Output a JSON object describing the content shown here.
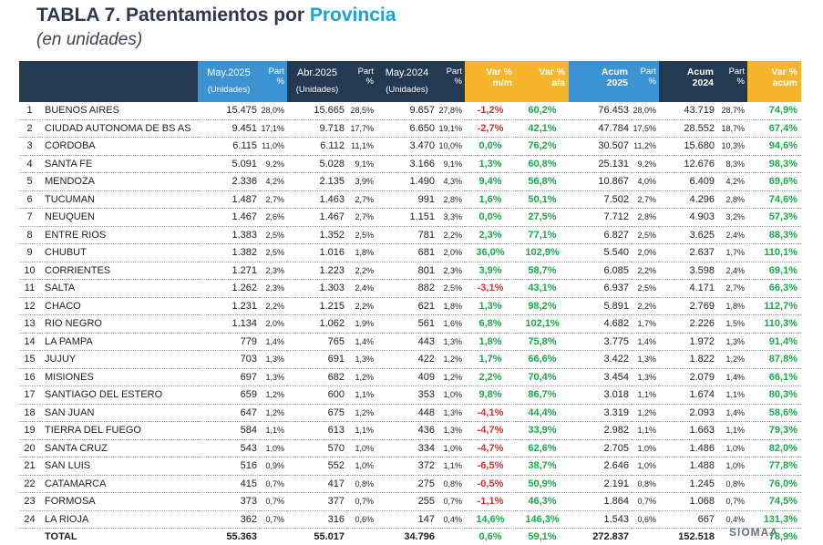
{
  "title_prefix": "TABLA 7. Patentamientos por ",
  "title_highlight": "Provincia",
  "subtitle": "(en unidades)",
  "headers": {
    "may2025": "May.2025",
    "may2025_unit": "(Unidades)",
    "abr2025": "Abr.2025",
    "abr2025_unit": "(Unidades)",
    "may2024": "May.2024",
    "may2024_unit": "(Unidades)",
    "part_a": "Part",
    "part_b": "%",
    "var_mm_a": "Var %",
    "var_mm_b": "m/m",
    "var_aa_a": "Var %",
    "var_aa_b": "a/a",
    "acum25_a": "Acum",
    "acum25_b": "2025",
    "acum24_a": "Acum",
    "acum24_b": "2024",
    "var_acum_a": "Var %",
    "var_acum_b": "acum"
  },
  "rows": [
    {
      "n": "1",
      "name": "BUENOS AIRES",
      "may25": "15.475",
      "p1": "28,0%",
      "abr25": "15.665",
      "p2": "28,5%",
      "may24": "9.657",
      "p3": "27,8%",
      "mm": "-1,2%",
      "aa": "60,2%",
      "ac25": "76.453",
      "p4": "28,0%",
      "ac24": "43.719",
      "p5": "28,7%",
      "vac": "74,9%"
    },
    {
      "n": "2",
      "name": "CIUDAD AUTONOMA DE BS AS",
      "may25": "9.451",
      "p1": "17,1%",
      "abr25": "9.718",
      "p2": "17,7%",
      "may24": "6.650",
      "p3": "19,1%",
      "mm": "-2,7%",
      "aa": "42,1%",
      "ac25": "47.784",
      "p4": "17,5%",
      "ac24": "28.552",
      "p5": "18,7%",
      "vac": "67,4%"
    },
    {
      "n": "3",
      "name": "CORDOBA",
      "may25": "6.115",
      "p1": "11,0%",
      "abr25": "6.112",
      "p2": "11,1%",
      "may24": "3.470",
      "p3": "10,0%",
      "mm": "0,0%",
      "aa": "76,2%",
      "ac25": "30.507",
      "p4": "11,2%",
      "ac24": "15.680",
      "p5": "10,3%",
      "vac": "94,6%"
    },
    {
      "n": "4",
      "name": "SANTA FE",
      "may25": "5.091",
      "p1": "9,2%",
      "abr25": "5.028",
      "p2": "9,1%",
      "may24": "3.166",
      "p3": "9,1%",
      "mm": "1,3%",
      "aa": "60,8%",
      "ac25": "25.131",
      "p4": "9,2%",
      "ac24": "12.676",
      "p5": "8,3%",
      "vac": "98,3%"
    },
    {
      "n": "5",
      "name": "MENDOZA",
      "may25": "2.336",
      "p1": "4,2%",
      "abr25": "2.135",
      "p2": "3,9%",
      "may24": "1.490",
      "p3": "4,3%",
      "mm": "9,4%",
      "aa": "56,8%",
      "ac25": "10.867",
      "p4": "4,0%",
      "ac24": "6.409",
      "p5": "4,2%",
      "vac": "69,6%"
    },
    {
      "n": "6",
      "name": "TUCUMAN",
      "may25": "1.487",
      "p1": "2,7%",
      "abr25": "1.463",
      "p2": "2,7%",
      "may24": "991",
      "p3": "2,8%",
      "mm": "1,6%",
      "aa": "50,1%",
      "ac25": "7.502",
      "p4": "2,7%",
      "ac24": "4.296",
      "p5": "2,8%",
      "vac": "74,6%"
    },
    {
      "n": "7",
      "name": "NEUQUEN",
      "may25": "1.467",
      "p1": "2,6%",
      "abr25": "1.467",
      "p2": "2,7%",
      "may24": "1.151",
      "p3": "3,3%",
      "mm": "0,0%",
      "aa": "27,5%",
      "ac25": "7.712",
      "p4": "2,8%",
      "ac24": "4.903",
      "p5": "3,2%",
      "vac": "57,3%"
    },
    {
      "n": "8",
      "name": "ENTRE RIOS",
      "may25": "1.383",
      "p1": "2,5%",
      "abr25": "1.352",
      "p2": "2,5%",
      "may24": "781",
      "p3": "2,2%",
      "mm": "2,3%",
      "aa": "77,1%",
      "ac25": "6.827",
      "p4": "2,5%",
      "ac24": "3.625",
      "p5": "2,4%",
      "vac": "88,3%"
    },
    {
      "n": "9",
      "name": "CHUBUT",
      "may25": "1.382",
      "p1": "2,5%",
      "abr25": "1.016",
      "p2": "1,8%",
      "may24": "681",
      "p3": "2,0%",
      "mm": "36,0%",
      "aa": "102,9%",
      "ac25": "5.540",
      "p4": "2,0%",
      "ac24": "2.637",
      "p5": "1,7%",
      "vac": "110,1%"
    },
    {
      "n": "10",
      "name": "CORRIENTES",
      "may25": "1.271",
      "p1": "2,3%",
      "abr25": "1.223",
      "p2": "2,2%",
      "may24": "801",
      "p3": "2,3%",
      "mm": "3,9%",
      "aa": "58,7%",
      "ac25": "6.085",
      "p4": "2,2%",
      "ac24": "3.598",
      "p5": "2,4%",
      "vac": "69,1%"
    },
    {
      "n": "11",
      "name": "SALTA",
      "may25": "1.262",
      "p1": "2,3%",
      "abr25": "1.303",
      "p2": "2,4%",
      "may24": "882",
      "p3": "2,5%",
      "mm": "-3,1%",
      "aa": "43,1%",
      "ac25": "6.937",
      "p4": "2,5%",
      "ac24": "4.171",
      "p5": "2,7%",
      "vac": "66,3%"
    },
    {
      "n": "12",
      "name": "CHACO",
      "may25": "1.231",
      "p1": "2,2%",
      "abr25": "1.215",
      "p2": "2,2%",
      "may24": "621",
      "p3": "1,8%",
      "mm": "1,3%",
      "aa": "98,2%",
      "ac25": "5.891",
      "p4": "2,2%",
      "ac24": "2.769",
      "p5": "1,8%",
      "vac": "112,7%"
    },
    {
      "n": "13",
      "name": "RIO NEGRO",
      "may25": "1.134",
      "p1": "2,0%",
      "abr25": "1.062",
      "p2": "1,9%",
      "may24": "561",
      "p3": "1,6%",
      "mm": "6,8%",
      "aa": "102,1%",
      "ac25": "4.682",
      "p4": "1,7%",
      "ac24": "2.226",
      "p5": "1,5%",
      "vac": "110,3%"
    },
    {
      "n": "14",
      "name": "LA PAMPA",
      "may25": "779",
      "p1": "1,4%",
      "abr25": "765",
      "p2": "1,4%",
      "may24": "443",
      "p3": "1,3%",
      "mm": "1,8%",
      "aa": "75,8%",
      "ac25": "3.775",
      "p4": "1,4%",
      "ac24": "1.972",
      "p5": "1,3%",
      "vac": "91,4%"
    },
    {
      "n": "15",
      "name": "JUJUY",
      "may25": "703",
      "p1": "1,3%",
      "abr25": "691",
      "p2": "1,3%",
      "may24": "422",
      "p3": "1,2%",
      "mm": "1,7%",
      "aa": "66,6%",
      "ac25": "3.422",
      "p4": "1,3%",
      "ac24": "1.822",
      "p5": "1,2%",
      "vac": "87,8%"
    },
    {
      "n": "16",
      "name": "MISIONES",
      "may25": "697",
      "p1": "1,3%",
      "abr25": "682",
      "p2": "1,2%",
      "may24": "409",
      "p3": "1,2%",
      "mm": "2,2%",
      "aa": "70,4%",
      "ac25": "3.454",
      "p4": "1,3%",
      "ac24": "2.079",
      "p5": "1,4%",
      "vac": "66,1%"
    },
    {
      "n": "17",
      "name": "SANTIAGO DEL ESTERO",
      "may25": "659",
      "p1": "1,2%",
      "abr25": "600",
      "p2": "1,1%",
      "may24": "353",
      "p3": "1,0%",
      "mm": "9,8%",
      "aa": "86,7%",
      "ac25": "3.018",
      "p4": "1,1%",
      "ac24": "1.674",
      "p5": "1,1%",
      "vac": "80,3%"
    },
    {
      "n": "18",
      "name": "SAN JUAN",
      "may25": "647",
      "p1": "1,2%",
      "abr25": "675",
      "p2": "1,2%",
      "may24": "448",
      "p3": "1,3%",
      "mm": "-4,1%",
      "aa": "44,4%",
      "ac25": "3.319",
      "p4": "1,2%",
      "ac24": "2.093",
      "p5": "1,4%",
      "vac": "58,6%"
    },
    {
      "n": "19",
      "name": "TIERRA DEL FUEGO",
      "may25": "584",
      "p1": "1,1%",
      "abr25": "613",
      "p2": "1,1%",
      "may24": "436",
      "p3": "1,3%",
      "mm": "-4,7%",
      "aa": "33,9%",
      "ac25": "2.982",
      "p4": "1,1%",
      "ac24": "1.663",
      "p5": "1,1%",
      "vac": "79,3%"
    },
    {
      "n": "20",
      "name": "SANTA CRUZ",
      "may25": "543",
      "p1": "1,0%",
      "abr25": "570",
      "p2": "1,0%",
      "may24": "334",
      "p3": "1,0%",
      "mm": "-4,7%",
      "aa": "62,6%",
      "ac25": "2.705",
      "p4": "1,0%",
      "ac24": "1.486",
      "p5": "1,0%",
      "vac": "82,0%"
    },
    {
      "n": "21",
      "name": "SAN LUIS",
      "may25": "516",
      "p1": "0,9%",
      "abr25": "552",
      "p2": "1,0%",
      "may24": "372",
      "p3": "1,1%",
      "mm": "-6,5%",
      "aa": "38,7%",
      "ac25": "2.646",
      "p4": "1,0%",
      "ac24": "1.488",
      "p5": "1,0%",
      "vac": "77,8%"
    },
    {
      "n": "22",
      "name": "CATAMARCA",
      "may25": "415",
      "p1": "0,7%",
      "abr25": "417",
      "p2": "0,8%",
      "may24": "275",
      "p3": "0,8%",
      "mm": "-0,5%",
      "aa": "50,9%",
      "ac25": "2.191",
      "p4": "0,8%",
      "ac24": "1.245",
      "p5": "0,8%",
      "vac": "76,0%"
    },
    {
      "n": "23",
      "name": "FORMOSA",
      "may25": "373",
      "p1": "0,7%",
      "abr25": "377",
      "p2": "0,7%",
      "may24": "255",
      "p3": "0,7%",
      "mm": "-1,1%",
      "aa": "46,3%",
      "ac25": "1.864",
      "p4": "0,7%",
      "ac24": "1.068",
      "p5": "0,7%",
      "vac": "74,5%"
    },
    {
      "n": "24",
      "name": "LA RIOJA",
      "may25": "362",
      "p1": "0,7%",
      "abr25": "316",
      "p2": "0,6%",
      "may24": "147",
      "p3": "0,4%",
      "mm": "14,6%",
      "aa": "146,3%",
      "ac25": "1.543",
      "p4": "0,6%",
      "ac24": "667",
      "p5": "0,4%",
      "vac": "131,3%"
    }
  ],
  "total": {
    "label": "TOTAL",
    "may25": "55.363",
    "abr25": "55.017",
    "may24": "34.796",
    "mm": "0,6%",
    "aa": "59,1%",
    "ac25": "272.837",
    "ac24": "152.518",
    "vac": "78,9%"
  },
  "logo_text": "SIOMAA"
}
